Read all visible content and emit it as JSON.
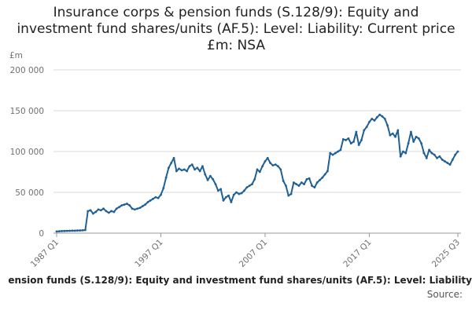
{
  "chart_data": {
    "type": "line",
    "title": "Insurance corps & pension funds (S.128/9): Equity and investment fund shares/units (AF.5): Level: Liability: Current price £m: NSA",
    "y_label": "£m",
    "footer": "ension funds (S.128/9): Equity and investment fund shares/units (AF.5): Level: Liability",
    "source": "Source:",
    "categories": [
      "1987 Q1",
      null,
      null,
      null,
      null,
      null,
      null,
      null,
      null,
      null,
      null,
      null,
      null,
      null,
      null,
      null,
      null,
      null,
      null,
      null,
      null,
      null,
      null,
      null,
      null,
      null,
      null,
      null,
      null,
      null,
      null,
      null,
      null,
      null,
      null,
      null,
      null,
      null,
      null,
      null,
      "1997 Q1",
      null,
      null,
      null,
      null,
      null,
      null,
      null,
      null,
      null,
      null,
      null,
      null,
      null,
      null,
      null,
      null,
      null,
      null,
      null,
      null,
      null,
      null,
      null,
      null,
      null,
      null,
      null,
      null,
      null,
      null,
      null,
      null,
      null,
      null,
      null,
      null,
      null,
      null,
      null,
      "2007 Q1",
      null,
      null,
      null,
      null,
      null,
      null,
      null,
      null,
      null,
      null,
      null,
      null,
      null,
      null,
      null,
      null,
      null,
      null,
      null,
      null,
      null,
      null,
      null,
      null,
      null,
      null,
      null,
      null,
      null,
      null,
      null,
      null,
      null,
      null,
      null,
      null,
      null,
      null,
      null,
      "2017 Q1",
      null,
      null,
      null,
      null,
      null,
      null,
      null,
      null,
      null,
      null,
      null,
      null,
      null,
      null,
      null,
      null,
      null,
      null,
      null,
      null,
      null,
      null,
      null,
      null,
      null,
      null,
      null,
      null,
      null,
      null,
      null,
      null,
      null,
      "2025 Q3"
    ],
    "series": [
      {
        "name": "Level",
        "color": "#206095",
        "values": [
          2000,
          2300,
          2500,
          2600,
          2800,
          2900,
          3000,
          3000,
          3200,
          3300,
          3500,
          3800,
          27000,
          28000,
          24000,
          26000,
          29000,
          28000,
          30000,
          27000,
          25000,
          27000,
          26000,
          30000,
          32000,
          34000,
          35000,
          36000,
          34000,
          30000,
          29000,
          30000,
          31000,
          33000,
          35000,
          38000,
          40000,
          42000,
          44000,
          43000,
          47000,
          55000,
          68000,
          80000,
          86000,
          92000,
          76000,
          79000,
          77000,
          78000,
          76000,
          82000,
          84000,
          78000,
          80000,
          76000,
          82000,
          72000,
          65000,
          70000,
          66000,
          60000,
          52000,
          54000,
          40000,
          44000,
          46000,
          38000,
          47000,
          50000,
          48000,
          49000,
          52000,
          56000,
          58000,
          60000,
          66000,
          78000,
          75000,
          82000,
          88000,
          92000,
          86000,
          83000,
          84000,
          82000,
          78000,
          64000,
          58000,
          46000,
          48000,
          62000,
          60000,
          58000,
          62000,
          60000,
          66000,
          67000,
          58000,
          56000,
          62000,
          65000,
          68000,
          72000,
          76000,
          98000,
          96000,
          98000,
          100000,
          102000,
          115000,
          114000,
          116000,
          110000,
          112000,
          124000,
          108000,
          114000,
          126000,
          130000,
          136000,
          140000,
          138000,
          142000,
          145000,
          143000,
          140000,
          132000,
          120000,
          122000,
          118000,
          126000,
          94000,
          100000,
          98000,
          110000,
          124000,
          112000,
          118000,
          116000,
          110000,
          98000,
          92000,
          102000,
          98000,
          96000,
          92000,
          94000,
          90000,
          88000,
          86000,
          84000,
          90000,
          96000,
          100000
        ]
      }
    ],
    "ylim": [
      0,
      200000
    ],
    "yticks": [
      0,
      {
        "value": 50000,
        "label": "50 000"
      },
      {
        "value": 100000,
        "label": "100 000"
      },
      {
        "value": 150000,
        "label": "150 000"
      },
      {
        "value": 200000,
        "label": "200 000"
      }
    ],
    "grid": true
  }
}
